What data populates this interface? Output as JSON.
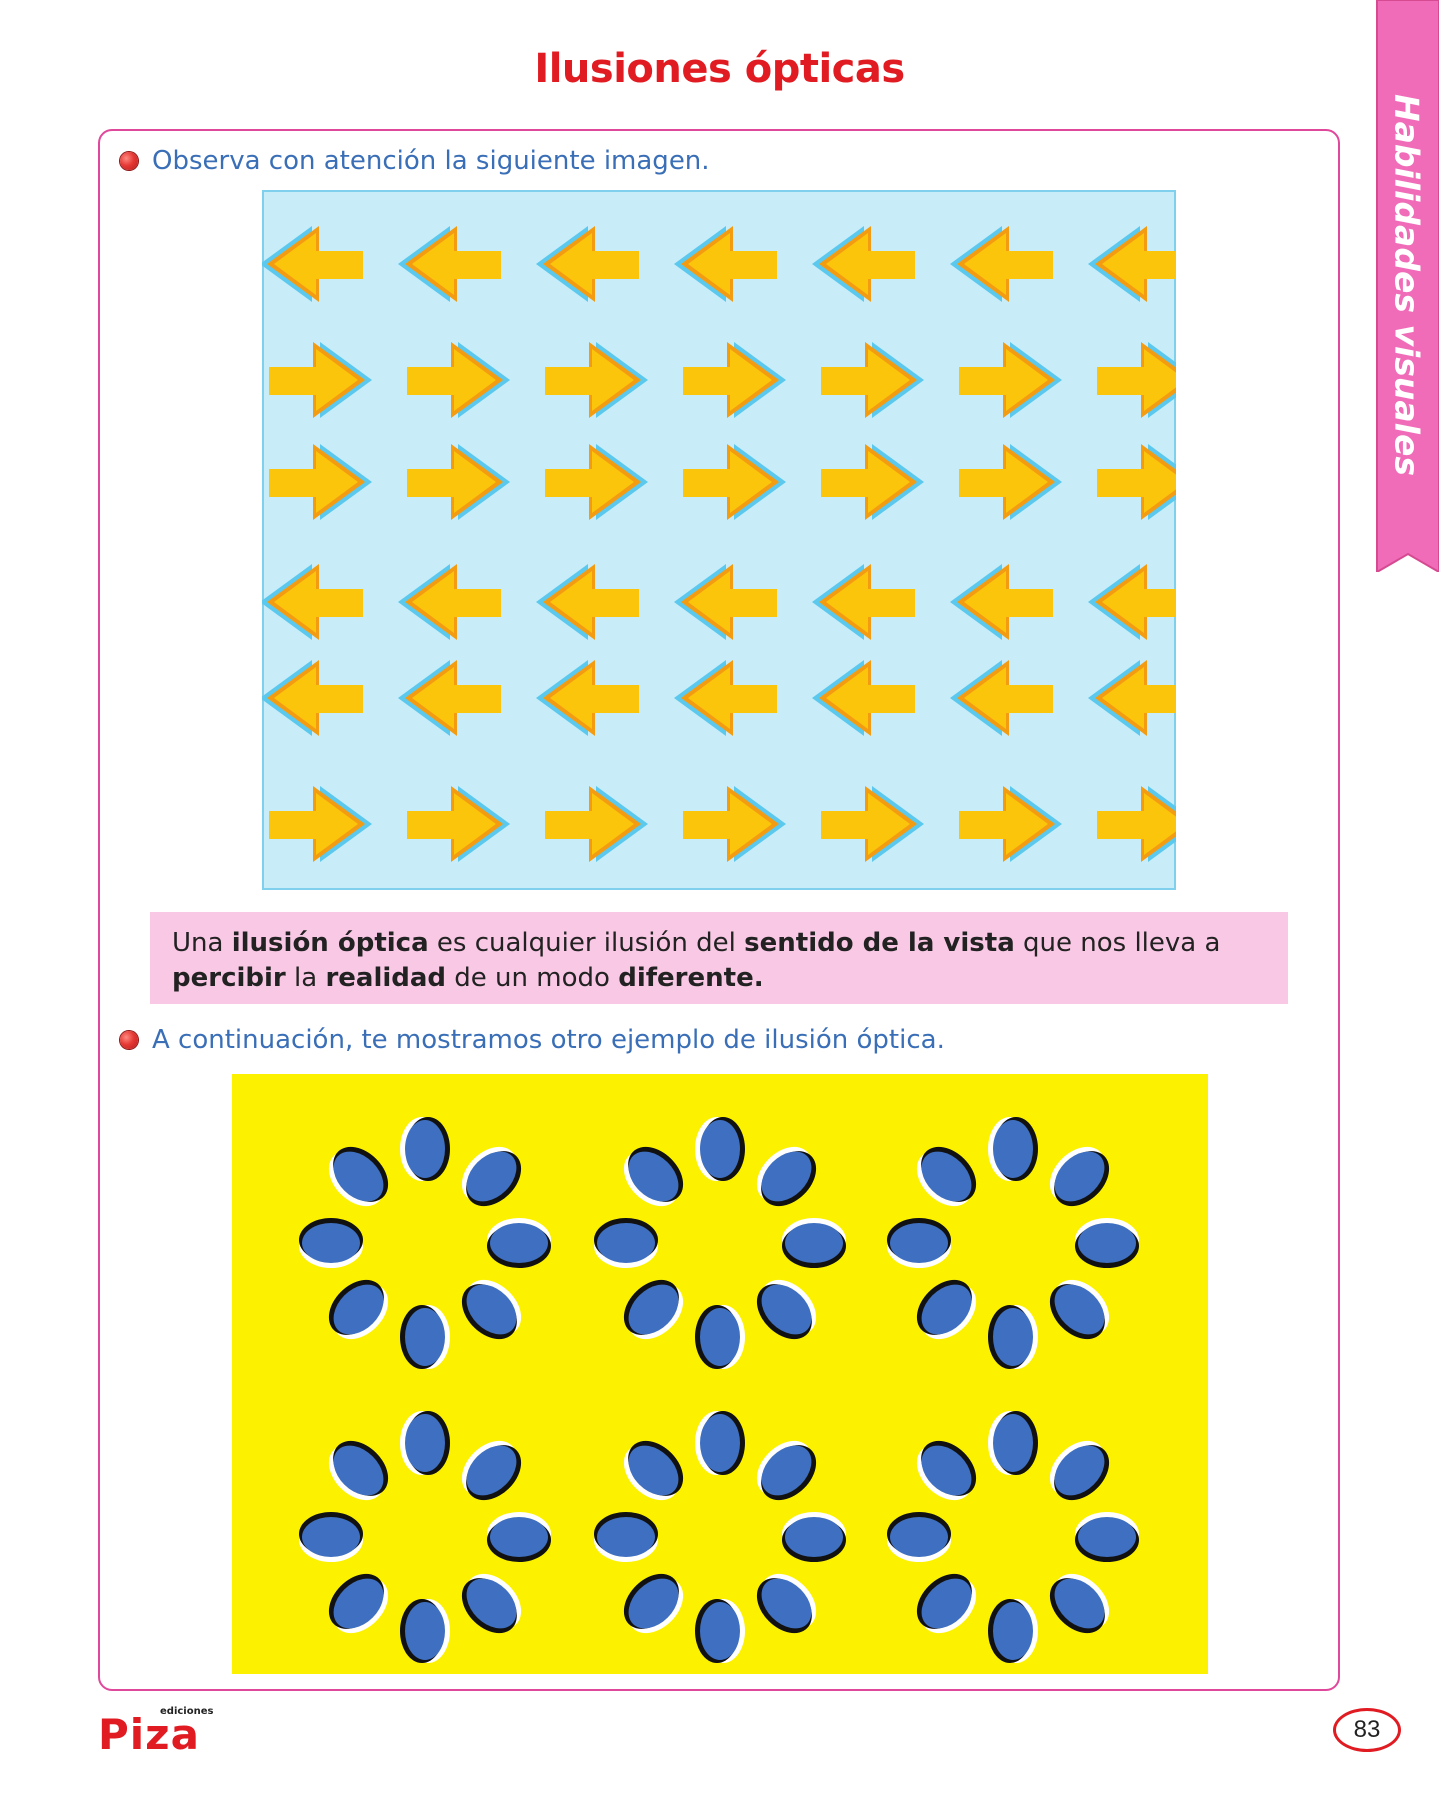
{
  "page": {
    "title": "Ilusiones ópticas",
    "section_tab": "Habilidades visuales",
    "page_number": "83"
  },
  "instructions": [
    "Observa con atención la siguiente imagen.",
    "A continuación, te mostramos otro ejemplo de ilusión óptica."
  ],
  "definition": {
    "parts": [
      {
        "text": "Una ",
        "bold": false
      },
      {
        "text": "ilusión óptica",
        "bold": true
      },
      {
        "text": " es cualquier ilusión del ",
        "bold": false
      },
      {
        "text": "sentido de la vista",
        "bold": true
      },
      {
        "text": " que nos lleva a ",
        "bold": false
      },
      {
        "text": "percibir",
        "bold": true
      },
      {
        "text": " la ",
        "bold": false
      },
      {
        "text": "realidad",
        "bold": true
      },
      {
        "text": " de un modo ",
        "bold": false
      },
      {
        "text": "diferente.",
        "bold": true
      }
    ]
  },
  "arrow_figure": {
    "rows": [
      "left",
      "right",
      "right",
      "left",
      "left",
      "right"
    ],
    "arrows_per_row": 7
  },
  "oval_figure": {
    "flowers_per_row": 3,
    "flower_rows": 2,
    "petals_per_flower": 8
  },
  "brand": {
    "small": "ediciones",
    "name": "Piza"
  },
  "colors": {
    "title_red": "#e11b22",
    "accent_pink": "#f06bb8",
    "frame_pink": "#e0489b",
    "instruction_blue": "#3a6fb7",
    "definition_bg": "#f9c8e5",
    "arrow_bg": "#c8ecf8",
    "arrow_border": "#7fd0ec",
    "arrow_fill": "#fbc50c",
    "arrow_dark": "#f39c12",
    "arrow_shadow": "#5bc8ee",
    "oval_bg": "#fcf200",
    "oval_fill": "#3f6fc0"
  }
}
